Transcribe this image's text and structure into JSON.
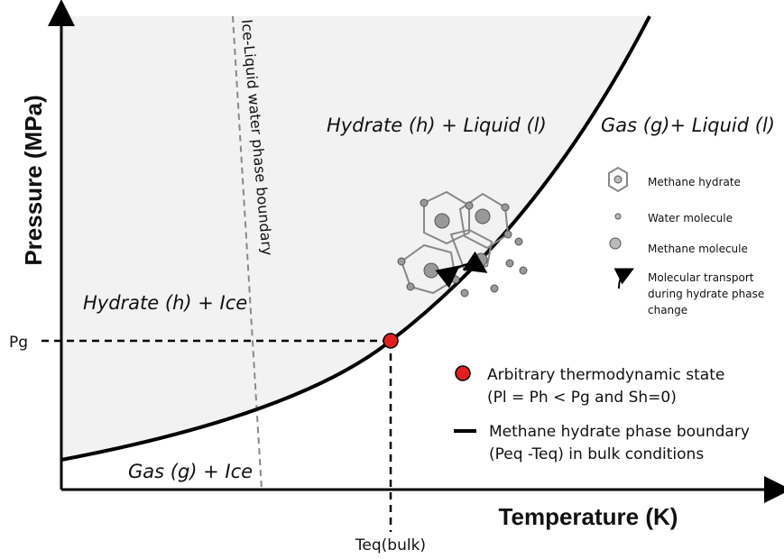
{
  "axes": {
    "y_label": "Pressure (MPa)",
    "x_label": "Temperature (K)",
    "y_marker": "Pg",
    "x_marker": "Teq(bulk)"
  },
  "regions": {
    "hydrate_liquid": "Hydrate (h) + Liquid (l)",
    "gas_liquid": "Gas (g)+ Liquid (l)",
    "hydrate_ice": "Hydrate (h) + Ice",
    "gas_ice": "Gas (g) + Ice"
  },
  "boundary_label": "Ice-Liquid water phase boundary",
  "molecule_legend": {
    "hydrate": "Methane hydrate",
    "water": "Water molecule",
    "methane": "Methane molecule",
    "transport": [
      "Molecular transport",
      "during hydrate phase",
      "change"
    ]
  },
  "legend": {
    "state": [
      "Arbitrary thermodynamic state",
      "(Pl = Ph < Pg and Sh=0)"
    ],
    "boundary": [
      "Methane hydrate phase boundary",
      "(Peq -Teq) in bulk conditions"
    ]
  }
}
